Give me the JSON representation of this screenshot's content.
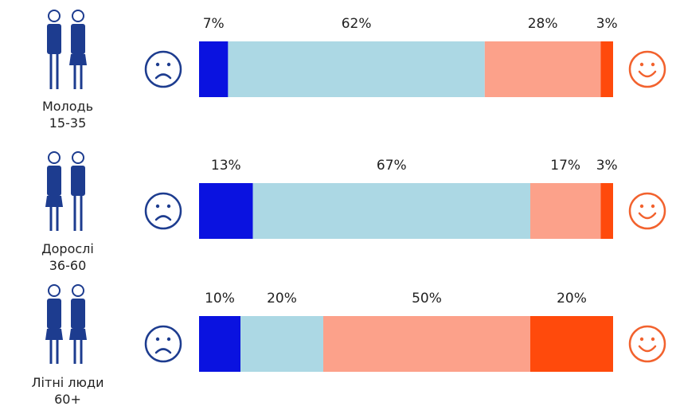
{
  "chart_data": {
    "type": "stacked-bar",
    "categories": [
      "Молодь\n15-35",
      "Дорослі\n36-60",
      "Літні люди\n60+"
    ],
    "series": [
      {
        "color": "#0a12e0",
        "values": [
          7,
          13,
          10
        ],
        "value_labels": [
          "7%",
          "13%",
          "10%"
        ]
      },
      {
        "color": "#acd8e4",
        "values": [
          62,
          67,
          20
        ],
        "value_labels": [
          "62%",
          "67%",
          "20%"
        ]
      },
      {
        "color": "#fca18a",
        "values": [
          28,
          17,
          50
        ],
        "value_labels": [
          "28%",
          "17%",
          "50%"
        ]
      },
      {
        "color": "#ff4a0c",
        "values": [
          3,
          3,
          20
        ],
        "value_labels": [
          "3%",
          "3%",
          "20%"
        ]
      }
    ]
  }
}
